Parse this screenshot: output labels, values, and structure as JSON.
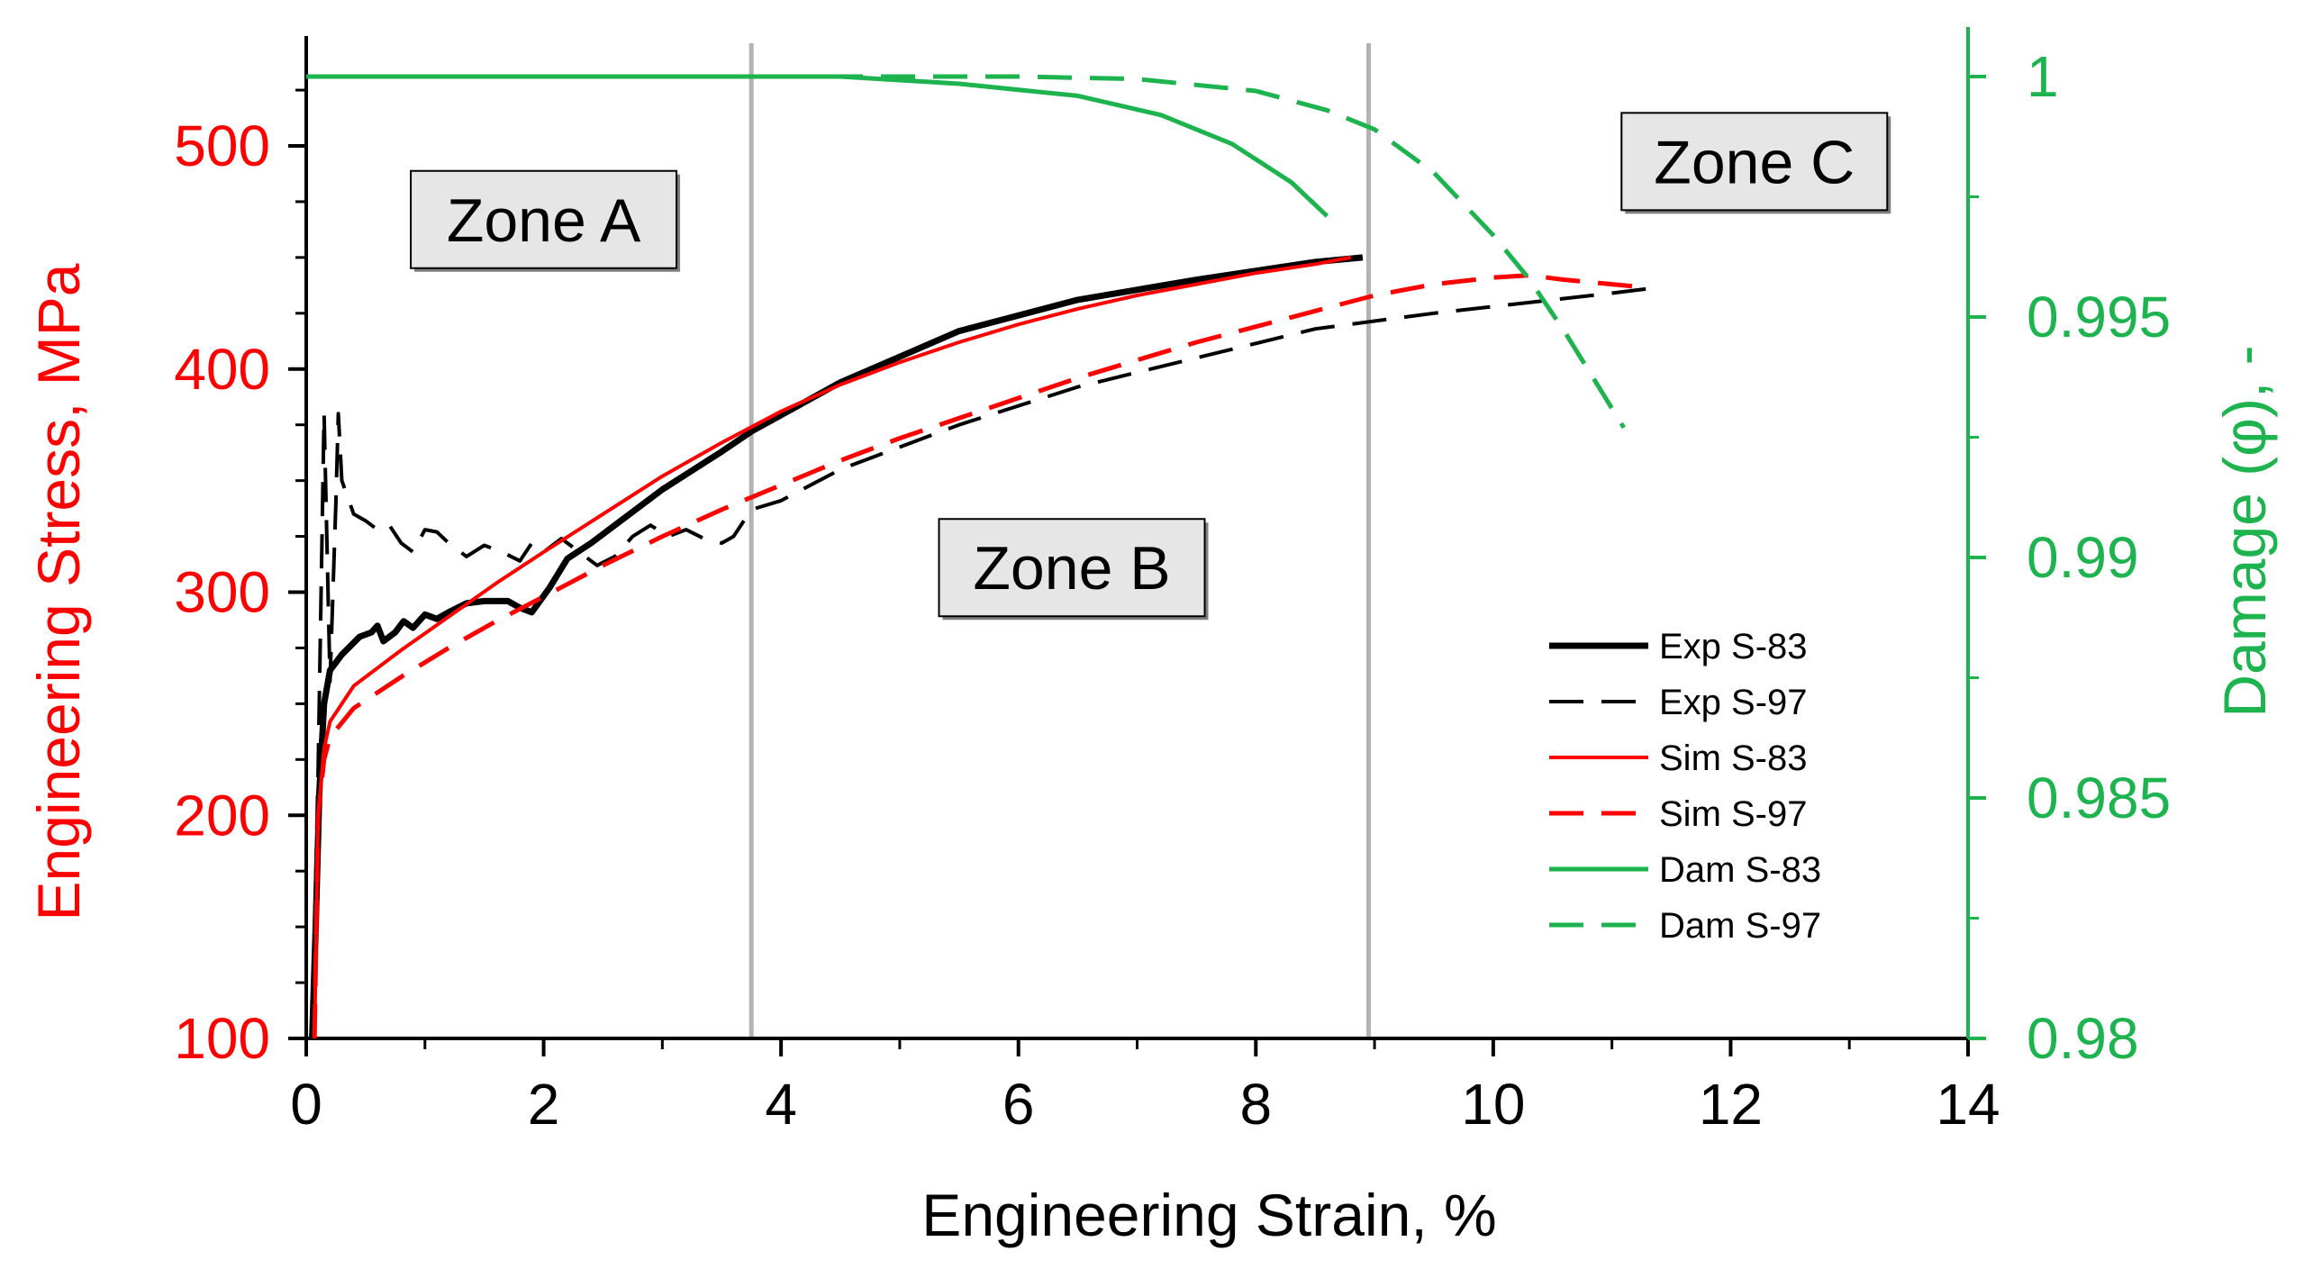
{
  "chart_data": {
    "type": "line",
    "x_axis": {
      "label": "Engineering Strain, %",
      "range": [
        0,
        14
      ],
      "ticks": [
        0,
        2,
        4,
        6,
        8,
        10,
        12,
        14
      ]
    },
    "y_axis_left": {
      "label": "Engineering Stress, MPa",
      "range": [
        100,
        550
      ],
      "ticks": [
        100,
        200,
        300,
        400,
        500
      ],
      "color": "#ff0000"
    },
    "y_axis_right": {
      "label": "Damage (φ), -",
      "range": [
        0.98,
        1.0015
      ],
      "ticks": [
        0.98,
        0.985,
        0.99,
        0.995,
        1
      ],
      "tick_labels": [
        "0.98",
        "0.985",
        "0.99",
        "0.995",
        "1"
      ],
      "color": "#1db34e"
    },
    "zone_boundaries": [
      3.75,
      8.95
    ],
    "zones": [
      {
        "label": "Zone A",
        "x": 2.0,
        "y": 467
      },
      {
        "label": "Zone B",
        "x": 6.45,
        "y": 311
      },
      {
        "label": "Zone C",
        "x": 12.2,
        "y": 493
      }
    ],
    "series": [
      {
        "name": "Exp S-83",
        "axis": "left",
        "color": "#000000",
        "dash": "solid",
        "width": 7,
        "points": [
          [
            0.05,
            100
          ],
          [
            0.08,
            150
          ],
          [
            0.11,
            210
          ],
          [
            0.15,
            250
          ],
          [
            0.2,
            265
          ],
          [
            0.3,
            272
          ],
          [
            0.45,
            280
          ],
          [
            0.55,
            282
          ],
          [
            0.6,
            285
          ],
          [
            0.65,
            278
          ],
          [
            0.75,
            282
          ],
          [
            0.82,
            287
          ],
          [
            0.9,
            284
          ],
          [
            1.0,
            290
          ],
          [
            1.1,
            288
          ],
          [
            1.2,
            291
          ],
          [
            1.35,
            295
          ],
          [
            1.5,
            296
          ],
          [
            1.7,
            296
          ],
          [
            1.8,
            293
          ],
          [
            1.9,
            291
          ],
          [
            2.05,
            302
          ],
          [
            2.2,
            315
          ],
          [
            2.4,
            322
          ],
          [
            2.6,
            330
          ],
          [
            3.0,
            346
          ],
          [
            3.5,
            363
          ],
          [
            3.75,
            372
          ],
          [
            4.5,
            394
          ],
          [
            5.5,
            417
          ],
          [
            6.5,
            431
          ],
          [
            7.5,
            440
          ],
          [
            8.5,
            448
          ],
          [
            8.9,
            450
          ]
        ]
      },
      {
        "name": "Exp S-97",
        "axis": "left",
        "color": "#000000",
        "dash": "long",
        "width": 4,
        "points": [
          [
            0.05,
            100
          ],
          [
            0.1,
            220
          ],
          [
            0.15,
            380
          ],
          [
            0.2,
            260
          ],
          [
            0.25,
            340
          ],
          [
            0.27,
            380
          ],
          [
            0.3,
            350
          ],
          [
            0.4,
            335
          ],
          [
            0.5,
            332
          ],
          [
            0.6,
            328
          ],
          [
            0.7,
            330
          ],
          [
            0.8,
            322
          ],
          [
            0.9,
            318
          ],
          [
            1.0,
            328
          ],
          [
            1.1,
            327
          ],
          [
            1.2,
            322
          ],
          [
            1.35,
            316
          ],
          [
            1.5,
            321
          ],
          [
            1.65,
            318
          ],
          [
            1.8,
            314
          ],
          [
            1.9,
            322
          ],
          [
            2.0,
            318
          ],
          [
            2.15,
            324
          ],
          [
            2.3,
            318
          ],
          [
            2.45,
            312
          ],
          [
            2.6,
            316
          ],
          [
            2.75,
            325
          ],
          [
            2.9,
            330
          ],
          [
            3.05,
            325
          ],
          [
            3.2,
            328
          ],
          [
            3.35,
            324
          ],
          [
            3.5,
            322
          ],
          [
            3.6,
            325
          ],
          [
            3.75,
            337
          ],
          [
            4.0,
            341
          ],
          [
            4.5,
            355
          ],
          [
            5.5,
            375
          ],
          [
            6.5,
            392
          ],
          [
            7.5,
            405
          ],
          [
            8.5,
            418
          ],
          [
            9.5,
            425
          ],
          [
            10.5,
            431
          ],
          [
            11.0,
            434
          ],
          [
            11.3,
            436
          ]
        ]
      },
      {
        "name": "Sim S-83",
        "axis": "left",
        "color": "#ff0000",
        "dash": "solid",
        "width": 4,
        "points": [
          [
            0.07,
            100
          ],
          [
            0.1,
            200
          ],
          [
            0.15,
            230
          ],
          [
            0.2,
            242
          ],
          [
            0.4,
            258
          ],
          [
            0.8,
            274
          ],
          [
            1.2,
            289
          ],
          [
            1.6,
            304
          ],
          [
            2.0,
            318
          ],
          [
            2.5,
            335
          ],
          [
            3.0,
            352
          ],
          [
            3.5,
            367
          ],
          [
            4.0,
            381
          ],
          [
            4.5,
            393
          ],
          [
            5.0,
            403
          ],
          [
            5.5,
            412
          ],
          [
            6.0,
            420
          ],
          [
            6.5,
            427
          ],
          [
            7.0,
            433
          ],
          [
            7.5,
            438
          ],
          [
            8.0,
            443
          ],
          [
            8.5,
            447
          ],
          [
            8.8,
            450
          ]
        ]
      },
      {
        "name": "Sim S-97",
        "axis": "left",
        "color": "#ff0000",
        "dash": "long",
        "width": 5,
        "points": [
          [
            0.07,
            100
          ],
          [
            0.1,
            200
          ],
          [
            0.15,
            225
          ],
          [
            0.2,
            235
          ],
          [
            0.4,
            248
          ],
          [
            0.8,
            262
          ],
          [
            1.2,
            275
          ],
          [
            1.6,
            287
          ],
          [
            2.0,
            298
          ],
          [
            2.5,
            312
          ],
          [
            3.0,
            325
          ],
          [
            3.5,
            337
          ],
          [
            4.0,
            348
          ],
          [
            4.5,
            359
          ],
          [
            5.0,
            369
          ],
          [
            5.5,
            378
          ],
          [
            6.0,
            387
          ],
          [
            6.5,
            396
          ],
          [
            7.0,
            404
          ],
          [
            7.5,
            412
          ],
          [
            8.0,
            419
          ],
          [
            8.5,
            426
          ],
          [
            9.0,
            433
          ],
          [
            9.5,
            438
          ],
          [
            10.0,
            441
          ],
          [
            10.3,
            442
          ],
          [
            10.6,
            440
          ],
          [
            11.0,
            438
          ],
          [
            11.2,
            437
          ]
        ]
      },
      {
        "name": "Dam S-83",
        "axis": "right",
        "color": "#1db34e",
        "dash": "solid",
        "width": 5,
        "points": [
          [
            0,
            1.0
          ],
          [
            4.5,
            1.0
          ],
          [
            5.5,
            0.99985
          ],
          [
            6.5,
            0.9996
          ],
          [
            7.2,
            0.9992
          ],
          [
            7.8,
            0.9986
          ],
          [
            8.3,
            0.9978
          ],
          [
            8.6,
            0.9971
          ]
        ]
      },
      {
        "name": "Dam S-97",
        "axis": "right",
        "color": "#1db34e",
        "dash": "long",
        "width": 5,
        "points": [
          [
            0,
            1.0
          ],
          [
            6.0,
            1.0
          ],
          [
            7.0,
            0.99995
          ],
          [
            8.0,
            0.9997
          ],
          [
            8.6,
            0.9993
          ],
          [
            9.0,
            0.9989
          ],
          [
            9.5,
            0.998
          ],
          [
            10.0,
            0.9967
          ],
          [
            10.3,
            0.9958
          ],
          [
            10.6,
            0.9947
          ],
          [
            10.9,
            0.9935
          ],
          [
            11.1,
            0.9927
          ]
        ]
      }
    ]
  }
}
